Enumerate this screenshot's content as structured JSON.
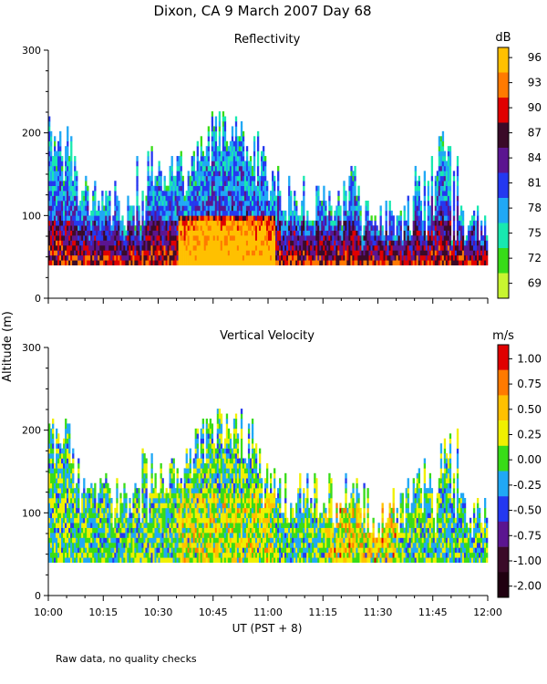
{
  "figure": {
    "title": "Dixon, CA  9 March 2007  Day  68",
    "shared_ylabel": "Altitude (m)",
    "xlabel": "UT  (PST + 8)",
    "footnote": "Raw data, no quality checks",
    "xticks": [
      "10:00",
      "10:15",
      "10:30",
      "10:45",
      "11:00",
      "11:15",
      "11:30",
      "11:45",
      "12:00"
    ]
  },
  "chart_data": [
    {
      "type": "heatmap",
      "title": "Reflectivity",
      "colorbar_unit": "dB",
      "xlabel": "UT  (PST + 8)",
      "ylabel": "Altitude (m)",
      "xlim_minutes": [
        0,
        120
      ],
      "ylim": [
        0,
        300
      ],
      "yticks": [
        0,
        100,
        200,
        300
      ],
      "colorbar_labels": [
        "96",
        "93",
        "90",
        "87",
        "84",
        "81",
        "78",
        "75",
        "72",
        "69"
      ],
      "colorbar_colors": [
        "#FFC000",
        "#FF7A00",
        "#E00000",
        "#3A0A28",
        "#5B1590",
        "#2438F0",
        "#20A8F5",
        "#18E8B0",
        "#38DC18",
        "#C8F530"
      ],
      "data_floor_m": 40,
      "echo_top_m": [
        215,
        215,
        215,
        180,
        150,
        150,
        150,
        140,
        140,
        140,
        140,
        180,
        160,
        180,
        180,
        180,
        200,
        215,
        235,
        230,
        230,
        235,
        215,
        180,
        160,
        160,
        150,
        140,
        150,
        145,
        150,
        140,
        140,
        160,
        140,
        130,
        120,
        130,
        130,
        120,
        150,
        170,
        130,
        200,
        200,
        120,
        120,
        125,
        120
      ],
      "dominant_class_midlevel": "78"
    },
    {
      "type": "heatmap",
      "title": "Vertical Velocity",
      "colorbar_unit": "m/s",
      "xlabel": "UT  (PST + 8)",
      "ylabel": "Altitude (m)",
      "xlim_minutes": [
        0,
        120
      ],
      "ylim": [
        0,
        300
      ],
      "yticks": [
        0,
        100,
        200,
        300
      ],
      "colorbar_labels": [
        "1.00",
        "0.75",
        "0.50",
        "0.25",
        "0.00",
        "-0.25",
        "-0.50",
        "-0.75",
        "-1.00",
        "-2.00"
      ],
      "colorbar_colors": [
        "#E00000",
        "#FF7A00",
        "#FFC000",
        "#F0F000",
        "#38DC18",
        "#20A8F5",
        "#2438F0",
        "#5B1590",
        "#3A0A28",
        "#200010"
      ],
      "data_floor_m": 40,
      "echo_top_m": [
        215,
        215,
        215,
        180,
        150,
        150,
        150,
        140,
        140,
        140,
        140,
        180,
        160,
        180,
        180,
        180,
        200,
        215,
        235,
        230,
        230,
        235,
        215,
        180,
        160,
        160,
        150,
        140,
        150,
        145,
        150,
        140,
        140,
        160,
        140,
        130,
        120,
        130,
        130,
        120,
        150,
        170,
        130,
        200,
        200,
        120,
        120,
        125,
        120
      ],
      "dominant_class_midlevel": "0.00"
    }
  ]
}
